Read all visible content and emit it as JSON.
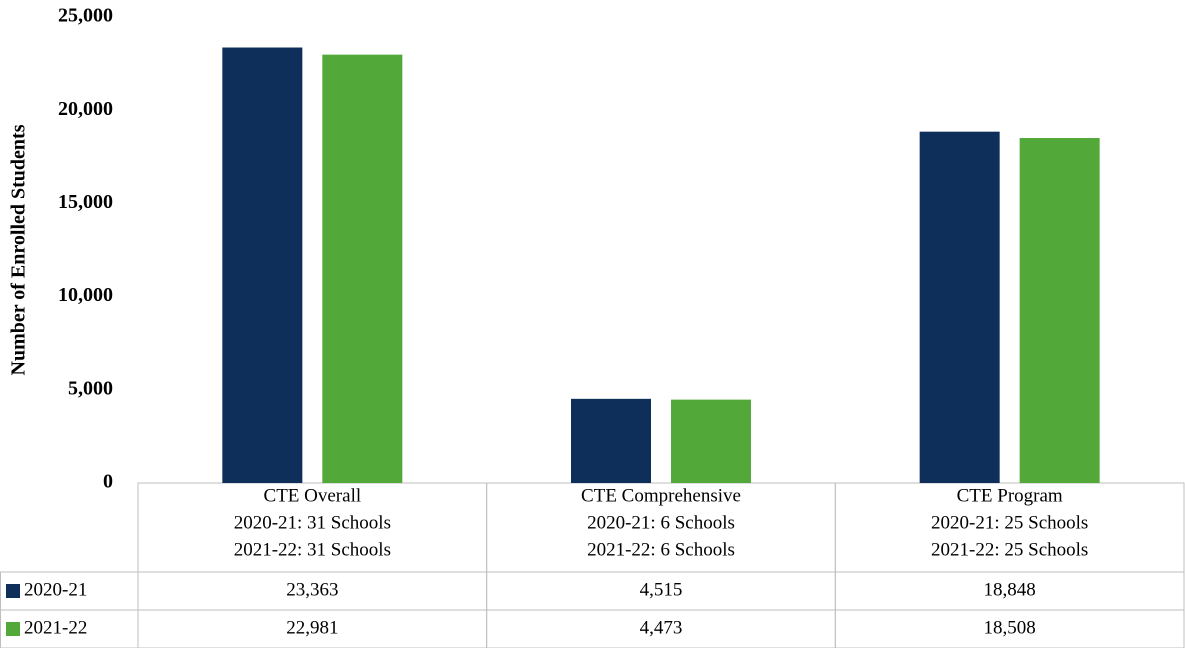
{
  "chart_data": {
    "type": "bar",
    "y_label": "Number of Enrolled Students",
    "categories": [
      [
        "CTE Overall",
        "2020-21: 31 Schools",
        "2021-22: 31 Schools"
      ],
      [
        "CTE Comprehensive",
        "2020-21: 6 Schools",
        "2021-22: 6 Schools"
      ],
      [
        "CTE Program",
        "2020-21: 25 Schools",
        "2021-22: 25 Schools"
      ]
    ],
    "series": [
      {
        "name": "2020-21",
        "color": "#0e2f5a",
        "values": [
          23363,
          4515,
          18848
        ],
        "value_labels": [
          "23,363",
          "4,515",
          "18,848"
        ]
      },
      {
        "name": "2021-22",
        "color": "#52a93a",
        "values": [
          22981,
          4473,
          18508
        ],
        "value_labels": [
          "22,981",
          "4,473",
          "18,508"
        ]
      }
    ],
    "ylim": [
      0,
      25000
    ],
    "yticks": [
      0,
      {
        "value": 5000,
        "label": "5,000"
      },
      {
        "value": 10000,
        "label": "10,000"
      },
      {
        "value": 15000,
        "label": "15,000"
      },
      {
        "value": 20000,
        "label": "20,000"
      },
      {
        "value": 25000,
        "label": "25,000"
      }
    ],
    "grid": false
  }
}
